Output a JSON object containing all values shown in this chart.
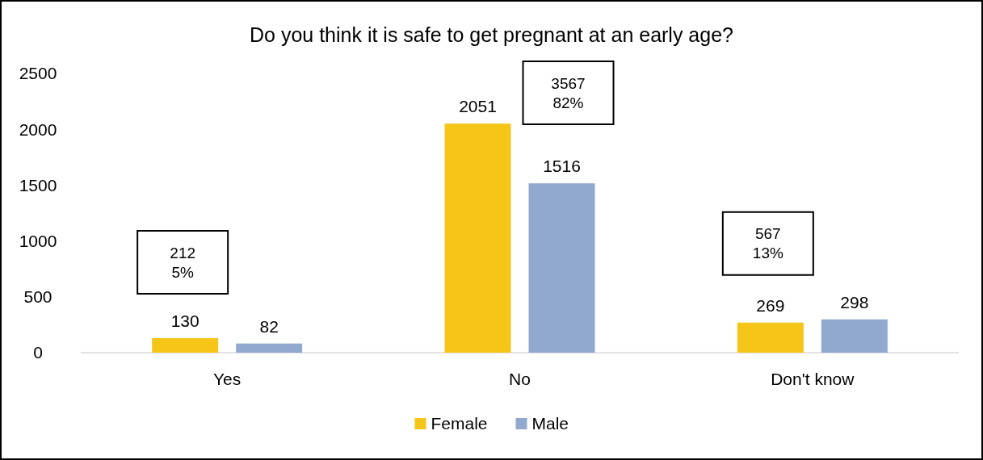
{
  "chart_data": {
    "type": "bar",
    "title": "Do you think it is safe to get pregnant at an early age?",
    "categories": [
      "Yes",
      "No",
      "Don't know"
    ],
    "series": [
      {
        "name": "Female",
        "color": "#f5c518",
        "values": [
          130,
          2051,
          269
        ]
      },
      {
        "name": "Male",
        "color": "#91a8cf",
        "values": [
          82,
          1516,
          298
        ]
      }
    ],
    "ylim": [
      0,
      2500
    ],
    "yticks": [
      0,
      500,
      1000,
      1500,
      2000,
      2500
    ],
    "data_labels": true,
    "grid": false,
    "legend": "bottom",
    "annotations": [
      "212\n5%",
      "3567\n82%",
      "567\n13%"
    ]
  }
}
